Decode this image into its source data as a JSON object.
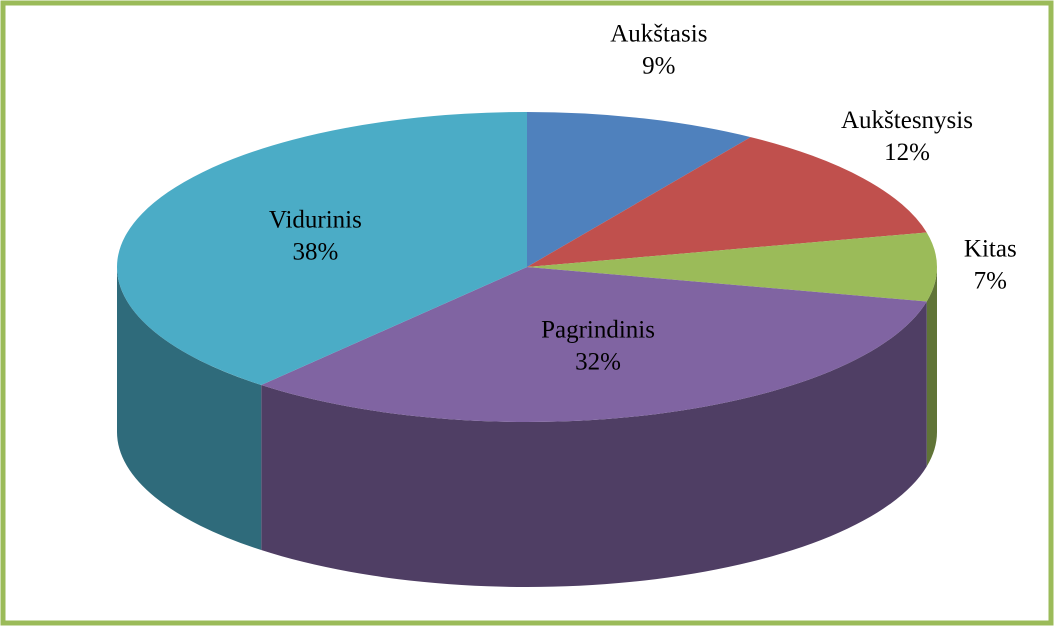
{
  "chart_data": {
    "type": "pie",
    "categories": [
      "Aukštasis",
      "Aukštesnysis",
      "Kitas",
      "Pagrindinis",
      "Vidurinis"
    ],
    "values": [
      9,
      12,
      7,
      32,
      38
    ],
    "value_labels": [
      "9%",
      "12%",
      "7%",
      "32%",
      "38%"
    ],
    "colors": [
      "#4f81bd",
      "#c0504d",
      "#9bbb59",
      "#8064a2",
      "#4bacc6"
    ]
  }
}
